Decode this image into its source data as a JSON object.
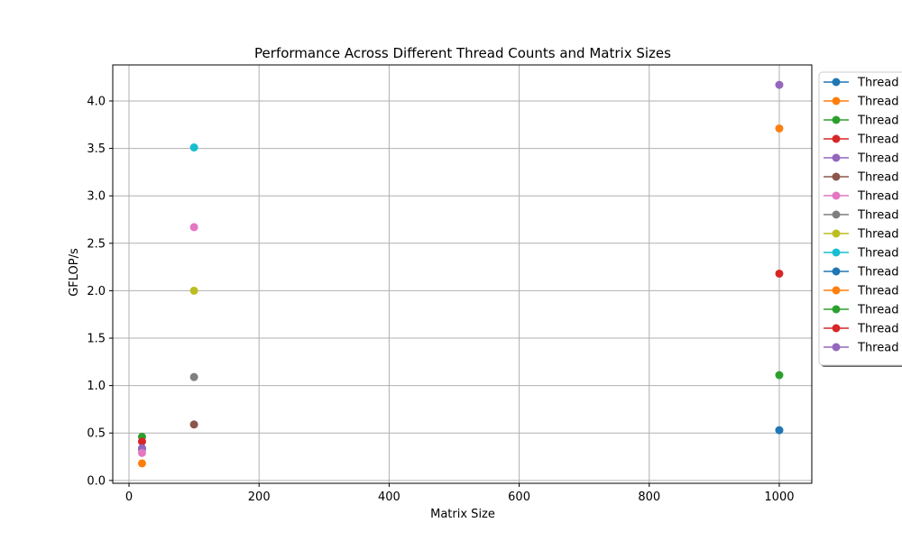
{
  "chart_data": {
    "type": "scatter",
    "title": "Performance Across Different Thread Counts and Matrix Sizes",
    "xlabel": "Matrix Size",
    "ylabel": "GFLOP/s",
    "xlim": [
      -25,
      1050
    ],
    "ylim": [
      -0.03,
      4.38
    ],
    "xticks": [
      0,
      200,
      400,
      600,
      800,
      1000
    ],
    "yticks": [
      0.0,
      0.5,
      1.0,
      1.5,
      2.0,
      2.5,
      3.0,
      3.5,
      4.0
    ],
    "grid": true,
    "legend_position": "outside right (clipped)",
    "series": [
      {
        "name": "Thread",
        "color": "#1f77b4",
        "points": [
          [
            20,
            0.33
          ]
        ]
      },
      {
        "name": "Thread",
        "color": "#ff7f0e",
        "points": [
          [
            20,
            0.18
          ]
        ]
      },
      {
        "name": "Thread",
        "color": "#2ca02c",
        "points": [
          [
            20,
            0.46
          ]
        ]
      },
      {
        "name": "Thread",
        "color": "#d62728",
        "points": [
          [
            20,
            0.41
          ]
        ]
      },
      {
        "name": "Thread",
        "color": "#9467bd",
        "points": [
          [
            20,
            0.34
          ]
        ]
      },
      {
        "name": "Thread",
        "color": "#8c564b",
        "points": [
          [
            100,
            0.59
          ]
        ]
      },
      {
        "name": "Thread",
        "color": "#e377c2",
        "points": [
          [
            100,
            2.67
          ]
        ]
      },
      {
        "name": "Thread",
        "color": "#7f7f7f",
        "points": [
          [
            100,
            1.09
          ]
        ]
      },
      {
        "name": "Thread",
        "color": "#bcbd22",
        "points": [
          [
            100,
            2.0
          ]
        ]
      },
      {
        "name": "Thread",
        "color": "#17becf",
        "points": [
          [
            100,
            3.51
          ]
        ]
      },
      {
        "name": "Thread",
        "color": "#1f77b4",
        "points": [
          [
            1000,
            0.53
          ]
        ]
      },
      {
        "name": "Thread",
        "color": "#ff7f0e",
        "points": [
          [
            1000,
            3.71
          ]
        ]
      },
      {
        "name": "Thread",
        "color": "#2ca02c",
        "points": [
          [
            1000,
            1.11
          ]
        ]
      },
      {
        "name": "Thread",
        "color": "#d62728",
        "points": [
          [
            1000,
            2.18
          ]
        ]
      },
      {
        "name": "Thread",
        "color": "#9467bd",
        "points": [
          [
            1000,
            4.17
          ]
        ]
      }
    ],
    "extra_points": [
      {
        "x": 20,
        "y": 0.29,
        "color": "#e377c2"
      }
    ]
  }
}
